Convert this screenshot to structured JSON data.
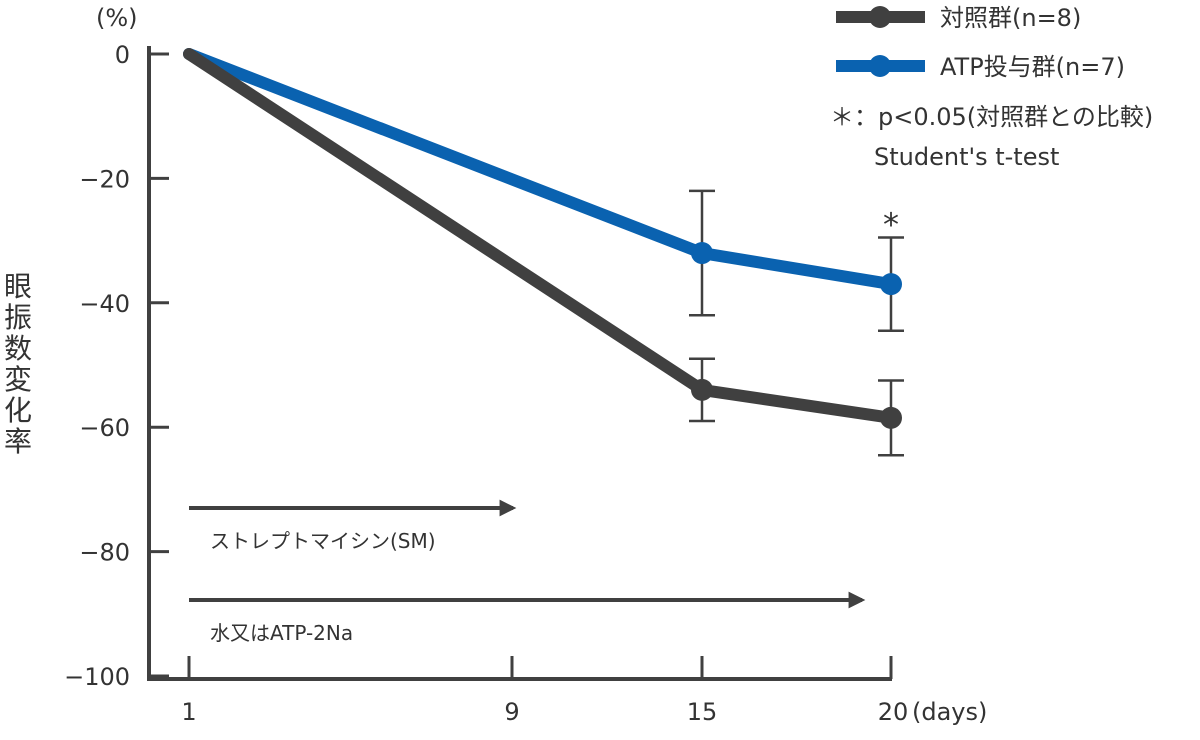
{
  "chart_data": {
    "type": "line",
    "y_unit": "(%)",
    "ylabel": "眼振数変化率",
    "x_unit": "(days)",
    "ylim": [
      -100,
      0
    ],
    "yticks": [
      0,
      -20,
      -40,
      -60,
      -80,
      -100
    ],
    "ytick_labels": [
      "0",
      "−20",
      "−40",
      "−60",
      "−80",
      "−100"
    ],
    "xlim": [
      1,
      20
    ],
    "xticks": [
      1,
      9,
      15,
      20
    ],
    "xtick_labels": [
      "1",
      "9",
      "15",
      "20"
    ],
    "grid": false,
    "legend_position": "top-right",
    "series": [
      {
        "name": "対照群(n=8)",
        "color": "#404040",
        "x": [
          1,
          15,
          20
        ],
        "y": [
          0,
          -54,
          -58.5
        ],
        "error": [
          null,
          5,
          6
        ]
      },
      {
        "name": "ATP投与群(n=7)",
        "color": "#0a62b0",
        "x": [
          1,
          15,
          20
        ],
        "y": [
          0,
          -32,
          -37
        ],
        "error": [
          null,
          10,
          7.5
        ]
      }
    ],
    "significance": {
      "marker": "*",
      "x": 20,
      "series": "ATP投与群(n=7)"
    },
    "notes": [
      "＊：p<0.05(対照群との比較)",
      "Student's t-test"
    ],
    "treatments": [
      {
        "label": "ストレプトマイシン(SM)",
        "start": 1,
        "end": 9
      },
      {
        "label": "水又はATP-2Na",
        "start": 1,
        "end": 20
      }
    ]
  }
}
